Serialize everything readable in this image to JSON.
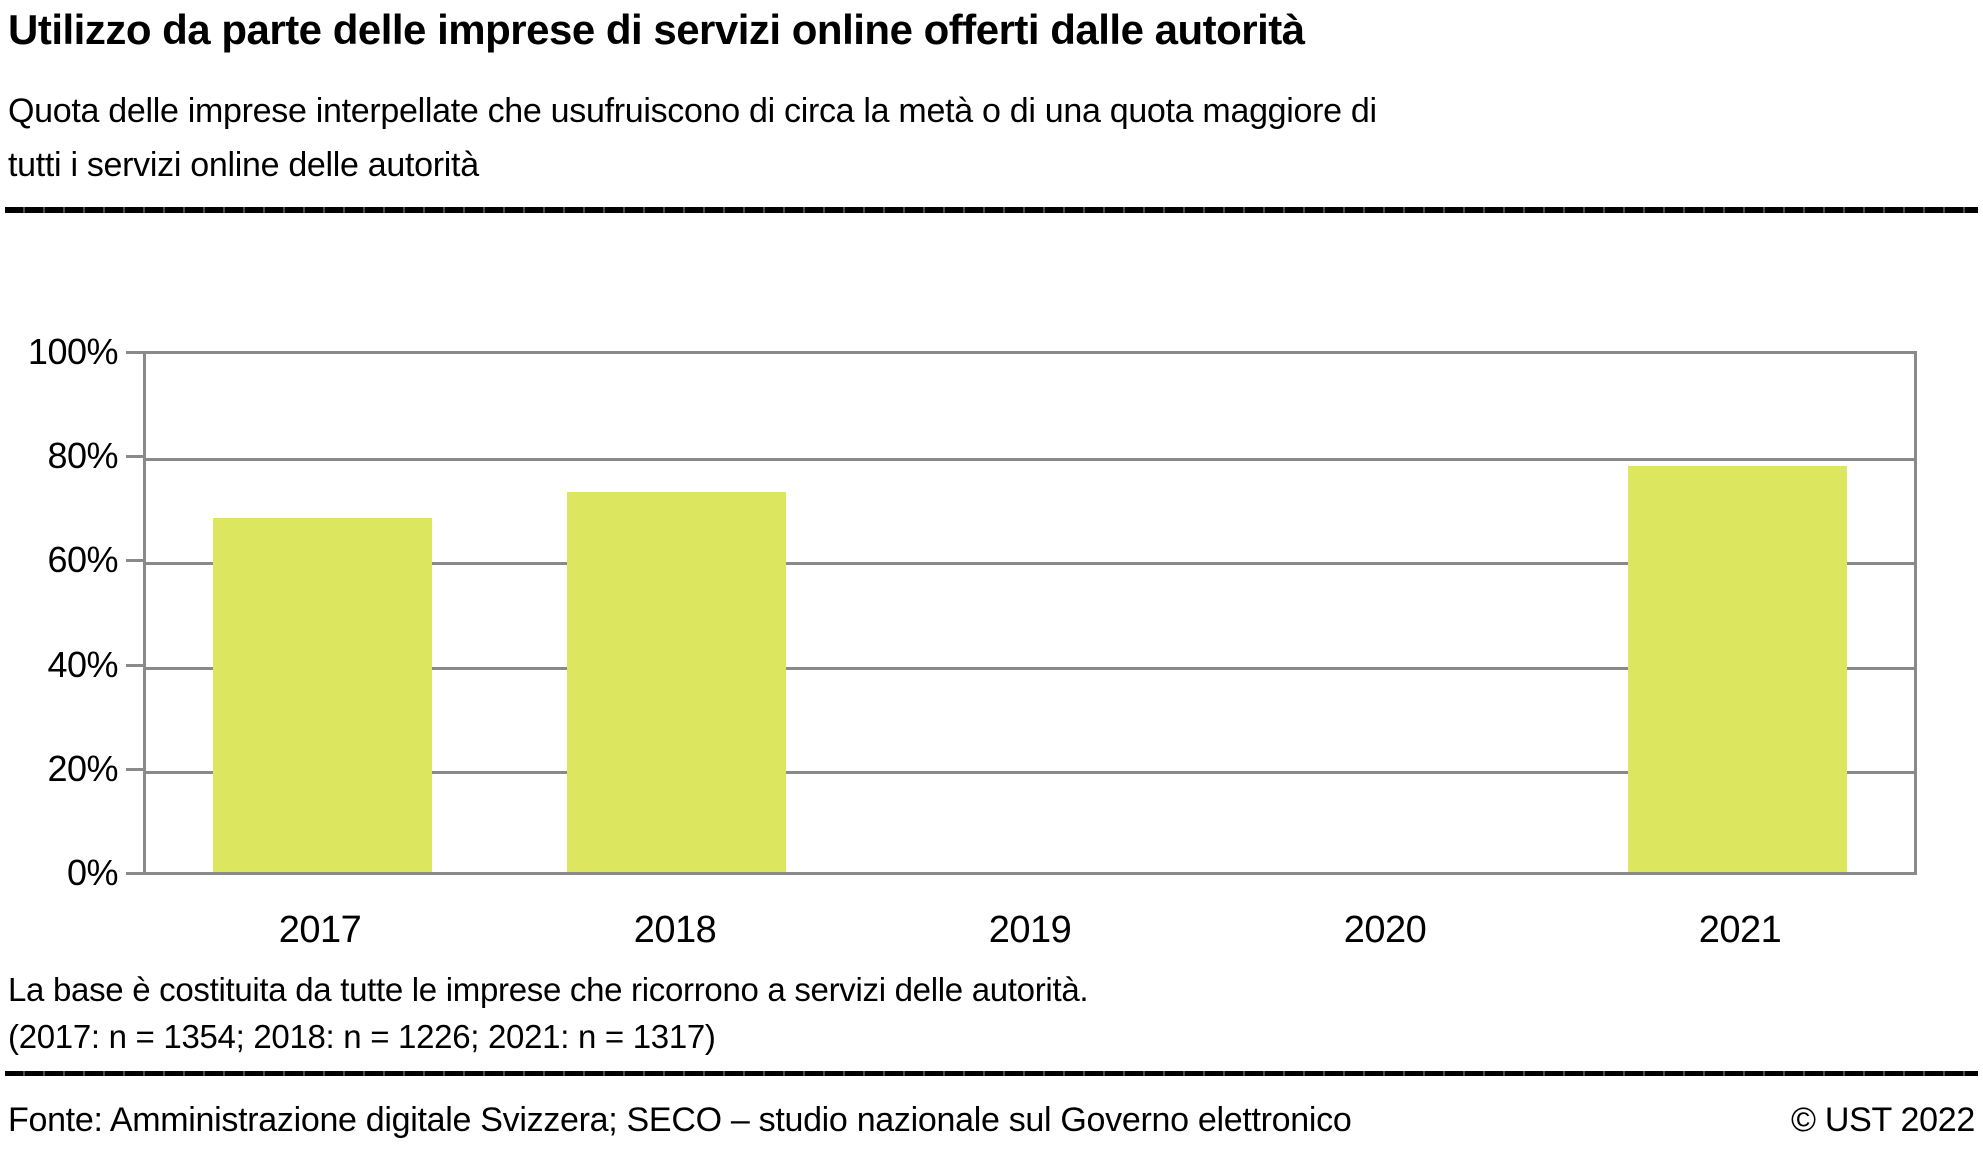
{
  "header": {
    "title": "Utilizzo da parte delle imprese di servizi online offerti dalle autorità",
    "subtitle_lines": [
      "Quota delle imprese interpellate che usufruiscono di circa la metà o di una quota maggiore di",
      "tutti i servizi online delle autorità"
    ]
  },
  "chart_data": {
    "type": "bar",
    "title": "Utilizzo da parte delle imprese di servizi online offerti dalle autorità",
    "categories": [
      "2017",
      "2018",
      "2019",
      "2020",
      "2021"
    ],
    "values": [
      68,
      73,
      null,
      null,
      78
    ],
    "unit": "%",
    "xlabel": "",
    "ylabel": "",
    "ylim": [
      0,
      100
    ],
    "ytick_step": 20,
    "ytick_labels": [
      "0%",
      "20%",
      "40%",
      "60%",
      "80%",
      "100%"
    ],
    "grid": "horizontal",
    "legend": false,
    "bar_color": "#dce65f",
    "grid_color": "#8a8a8a"
  },
  "footnotes": [
    "La base è costituita da tutte le imprese che ricorrono a servizi delle autorità.",
    "(2017: n = 1354; 2018: n = 1226; 2021: n = 1317)"
  ],
  "footer": {
    "source": "Fonte: Amministrazione digitale Svizzera; SECO – studio nazionale sul Governo elettronico",
    "copyright": "© UST 2022"
  },
  "colors": {
    "bar": "#dce65f",
    "grid": "#8a8a8a",
    "rule": "#000000",
    "text": "#000000"
  }
}
